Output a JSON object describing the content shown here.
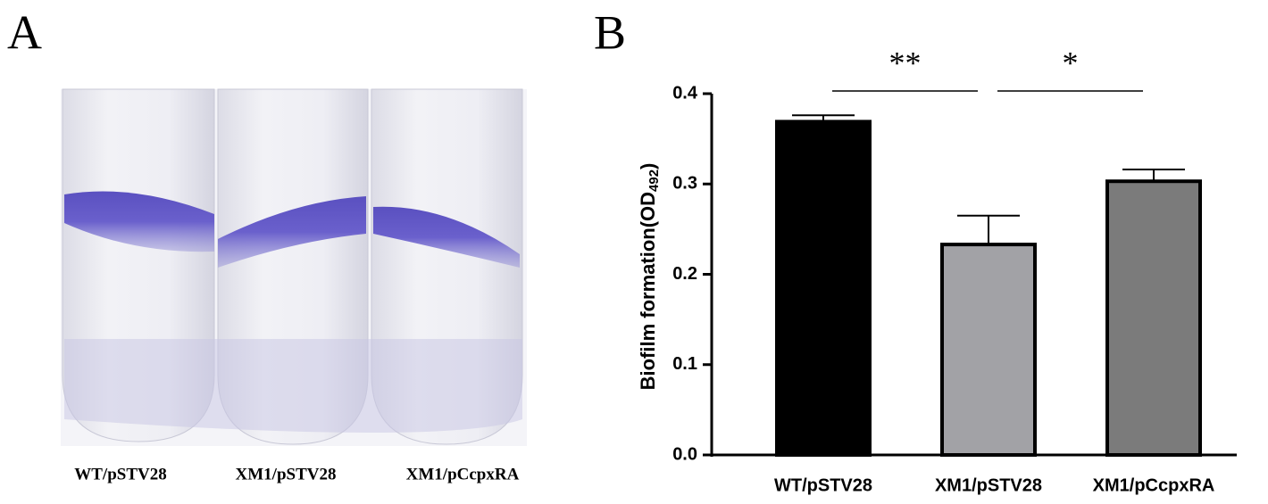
{
  "panel_labels": [
    "A",
    "B"
  ],
  "tubes": [
    "WT/pSTV28",
    "XM1/pSTV28",
    "XM1/pCcpxRA"
  ],
  "chart_data": {
    "type": "bar",
    "ylabel": "Biofilm formation(OD",
    "ylabel_sub": "492",
    "ylabel_end": ")",
    "categories": [
      "WT/pSTV28",
      "XM1/pSTV28",
      "XM1/pCcpxRA"
    ],
    "values": [
      0.369,
      0.233,
      0.303
    ],
    "errors": [
      0.007,
      0.032,
      0.013
    ],
    "colors": [
      "#000000",
      "#a2a2a6",
      "#7b7b7b"
    ],
    "ylim": [
      0,
      0.4
    ],
    "yticks": [
      {
        "value": 0,
        "label": "0.0"
      },
      0.1,
      0.2,
      0.3,
      0.4
    ],
    "significance": [
      {
        "label": "**",
        "from": 0,
        "to": 1
      },
      {
        "label": "*",
        "from": 1,
        "to": 2
      }
    ]
  }
}
